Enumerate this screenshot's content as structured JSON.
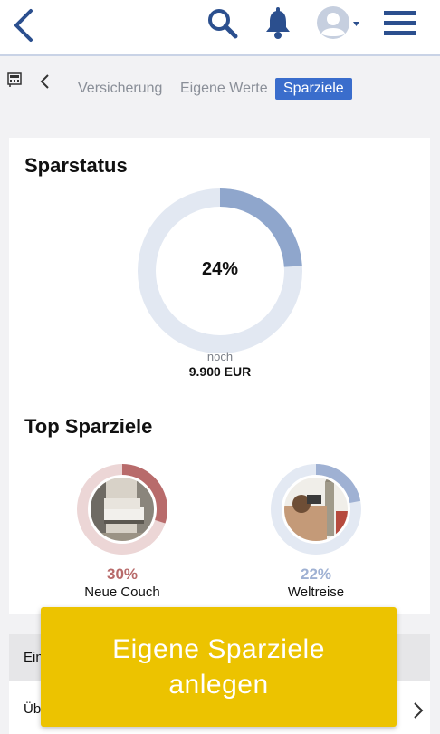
{
  "colors": {
    "accent": "#2b4f8e",
    "active_tab_bg": "#3a6dcc",
    "donut_track": "#e2e8f2",
    "donut_fill": "#8fa6cc",
    "couch_color": "#b86b6b",
    "travel_color": "#9fb1d3",
    "cta_bg": "#ecc300"
  },
  "header": {
    "icons": [
      "back-icon",
      "search-icon",
      "bell-icon",
      "avatar-icon",
      "menu-icon"
    ]
  },
  "tabs": [
    {
      "label": "Versicherung",
      "active": false
    },
    {
      "label": "Eigene Werte",
      "active": false
    },
    {
      "label": "Sparziele",
      "active": true
    }
  ],
  "sparstatus": {
    "title": "Sparstatus",
    "percent": 24,
    "percent_label": "24%",
    "remaining_label": "noch",
    "remaining_value": "9.900 EUR"
  },
  "top_goals": {
    "title": "Top Sparziele",
    "items": [
      {
        "name": "Neue Couch",
        "percent": 30,
        "percent_label": "30%",
        "image": "couch-photo"
      },
      {
        "name": "Weltreise",
        "percent": 22,
        "percent_label": "22%",
        "image": "travel-photo"
      }
    ]
  },
  "list": {
    "row1_prefix": "Ein",
    "row2_prefix": "Üb"
  },
  "cta": {
    "label": "Eigene Sparziele anlegen"
  }
}
